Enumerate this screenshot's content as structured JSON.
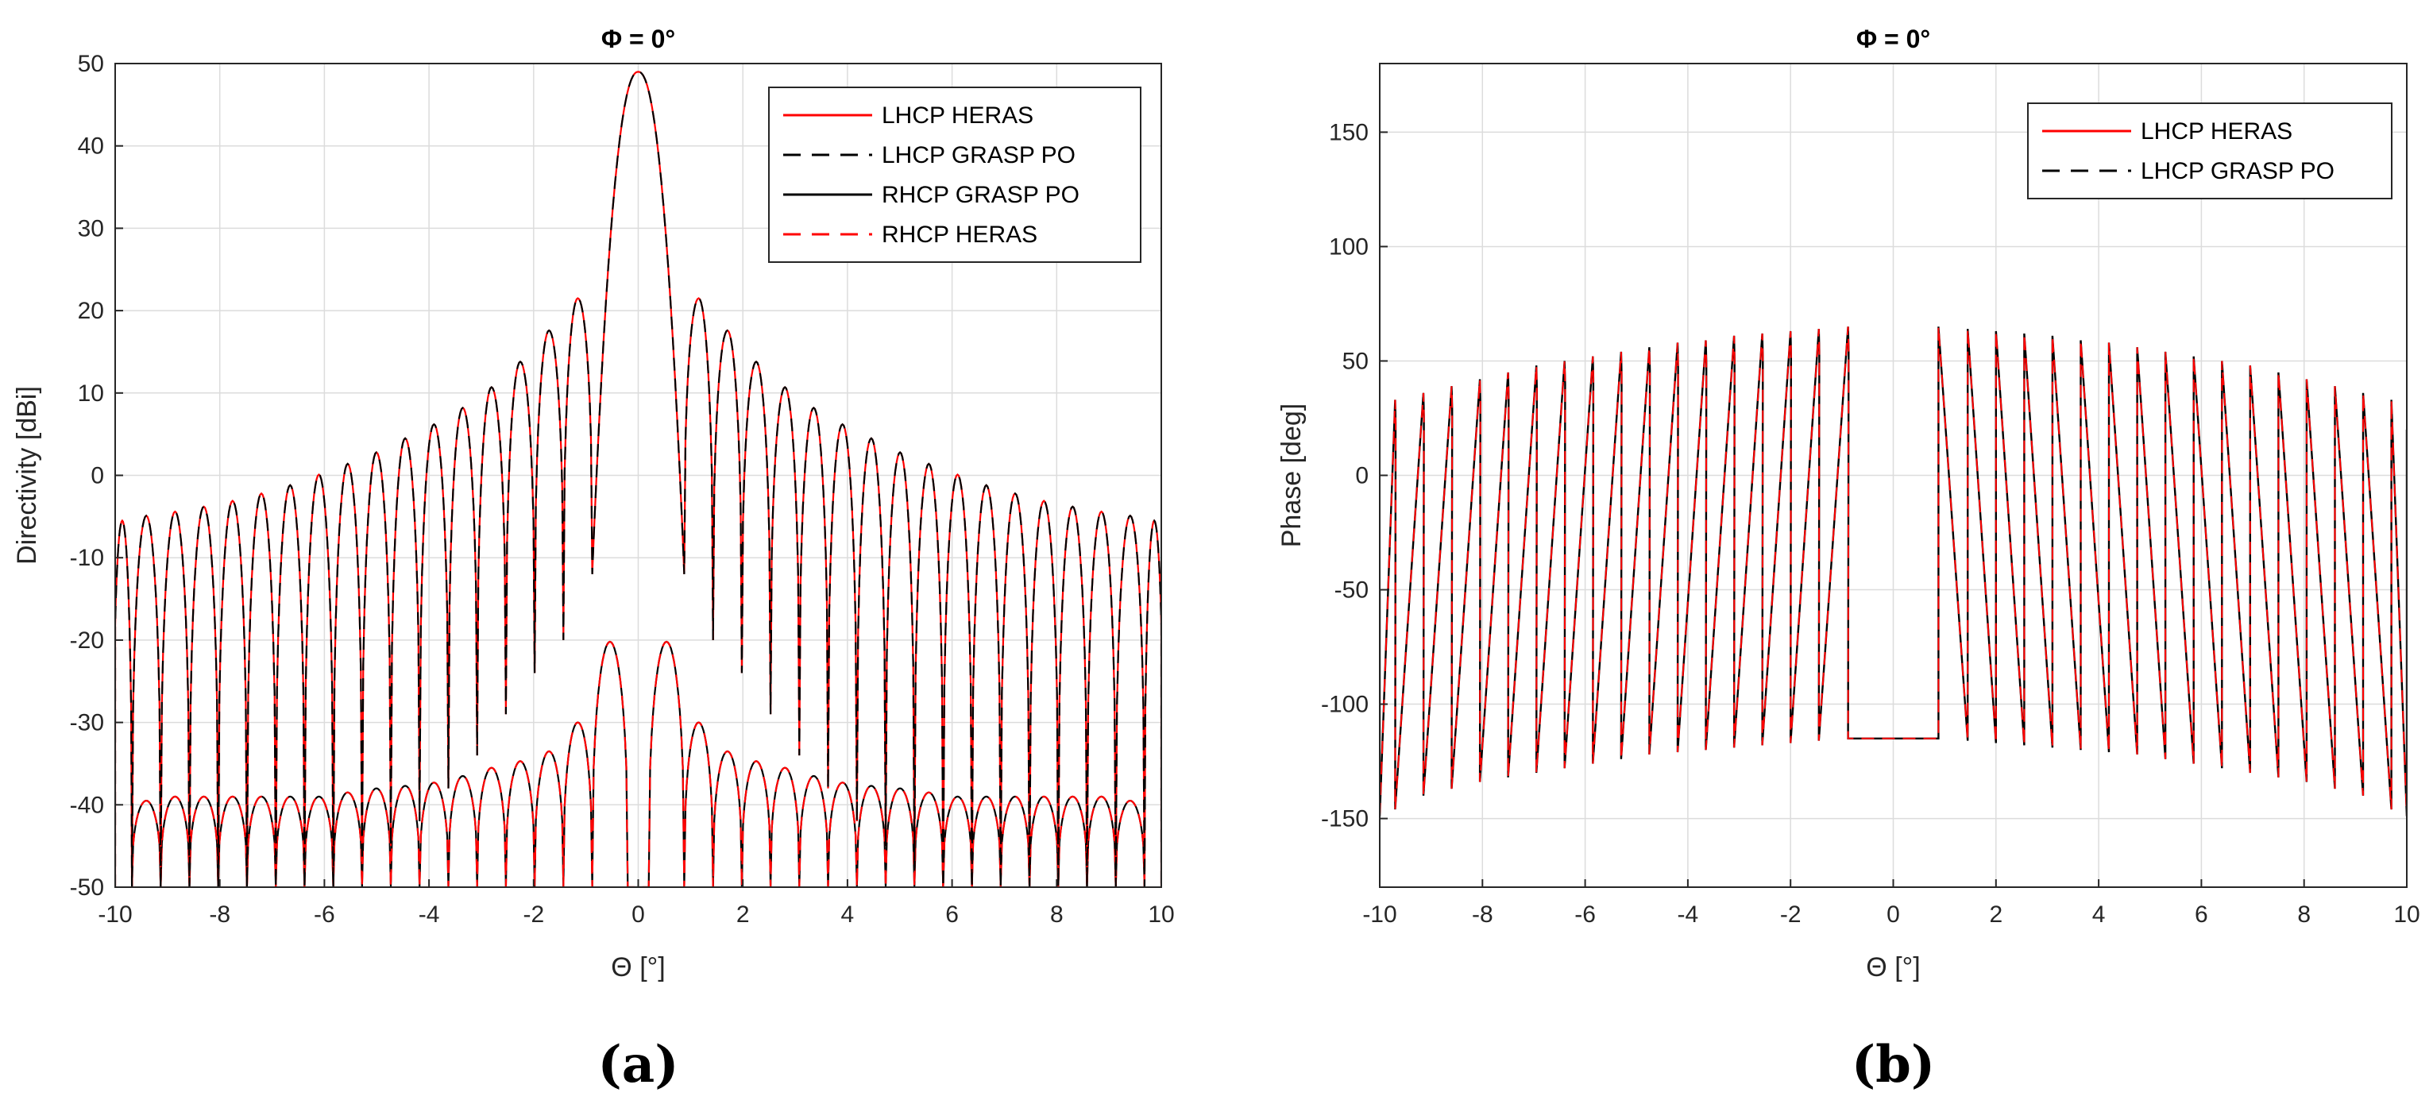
{
  "figure": {
    "panel_a_label": "(a)",
    "panel_b_label": "(b)",
    "colors": {
      "red": "#ff0000",
      "black": "#000000",
      "grid": "#dcdcdc",
      "axis": "#262626"
    }
  },
  "chart_data": [
    {
      "id": "a",
      "type": "line",
      "title": "Φ = 0°",
      "xlabel": "Θ [°]",
      "ylabel": "Directivity [dBi]",
      "xlim": [
        -10,
        10
      ],
      "ylim": [
        -50,
        50
      ],
      "xticks": [
        -10,
        -8,
        -6,
        -4,
        -2,
        0,
        2,
        4,
        6,
        8,
        10
      ],
      "yticks": [
        -50,
        -40,
        -30,
        -20,
        -10,
        0,
        10,
        20,
        30,
        40,
        50
      ],
      "grid": true,
      "legend_position": "top-right",
      "legend": [
        {
          "label": "LHCP HERAS",
          "color": "#ff0000",
          "dash": "solid"
        },
        {
          "label": "LHCP GRASP PO",
          "color": "#000000",
          "dash": "dashed"
        },
        {
          "label": "RHCP GRASP PO",
          "color": "#000000",
          "dash": "solid"
        },
        {
          "label": "RHCP HERAS",
          "color": "#ff0000",
          "dash": "dashed"
        }
      ],
      "main_beam_peak": 49,
      "main_beam_halfwidth": 0.88,
      "lhcp_sidelobe_peaks": [
        [
          0.58,
          21.5
        ],
        [
          1.22,
          17.6
        ],
        [
          1.77,
          13.8
        ],
        [
          2.32,
          10.7
        ],
        [
          2.87,
          8.2
        ],
        [
          3.42,
          6.2
        ],
        [
          3.97,
          4.5
        ],
        [
          4.52,
          2.8
        ],
        [
          5.07,
          1.4
        ],
        [
          5.62,
          0.1
        ],
        [
          6.17,
          -1.2
        ],
        [
          6.72,
          -2.2
        ],
        [
          7.27,
          -3.1
        ],
        [
          7.82,
          -3.8
        ],
        [
          8.37,
          -4.4
        ],
        [
          8.92,
          -4.9
        ],
        [
          9.47,
          -5.5
        ]
      ],
      "lhcp_null_depths": [
        -12,
        -20,
        -24,
        -29,
        -34,
        -38,
        -42,
        -45,
        -48,
        -50,
        -50,
        -50,
        -50,
        -50,
        -50,
        -50,
        -50
      ],
      "rhcp_lobe_peaks": [
        [
          0.58,
          -20.2
        ],
        [
          1.22,
          -30
        ],
        [
          1.77,
          -33.5
        ],
        [
          2.32,
          -34.7
        ],
        [
          2.87,
          -35.5
        ],
        [
          3.42,
          -36.5
        ],
        [
          3.97,
          -37.3
        ],
        [
          4.52,
          -37.7
        ],
        [
          5.07,
          -38
        ],
        [
          5.62,
          -38.5
        ],
        [
          6.17,
          -39
        ],
        [
          6.72,
          -39
        ],
        [
          7.27,
          -39
        ],
        [
          7.82,
          -39
        ],
        [
          8.37,
          -39
        ],
        [
          8.92,
          -39
        ],
        [
          9.47,
          -39.5
        ]
      ]
    },
    {
      "id": "b",
      "type": "line",
      "title": "Φ = 0°",
      "xlabel": "Θ [°]",
      "ylabel": "Phase [deg]",
      "xlim": [
        -10,
        10
      ],
      "ylim": [
        -180,
        180
      ],
      "xticks": [
        -10,
        -8,
        -6,
        -4,
        -2,
        0,
        2,
        4,
        6,
        8,
        10
      ],
      "yticks": [
        -150,
        -100,
        -50,
        0,
        50,
        100,
        150
      ],
      "grid": true,
      "legend_position": "top-right",
      "legend": [
        {
          "label": "LHCP HERAS",
          "color": "#ff0000",
          "dash": "solid"
        },
        {
          "label": "LHCP GRASP PO",
          "color": "#000000",
          "dash": "dashed"
        }
      ],
      "center_plateau": {
        "x": [
          -0.88,
          0.88
        ],
        "y": -115
      },
      "phase_segments": [
        {
          "x": [
            0.88,
            1.45
          ],
          "y": [
            65,
            -116
          ]
        },
        {
          "x": [
            1.45,
            2.0
          ],
          "y": [
            64,
            -117
          ]
        },
        {
          "x": [
            2.0,
            2.55
          ],
          "y": [
            63,
            -118
          ]
        },
        {
          "x": [
            2.55,
            3.1
          ],
          "y": [
            62,
            -119
          ]
        },
        {
          "x": [
            3.1,
            3.65
          ],
          "y": [
            61,
            -120
          ]
        },
        {
          "x": [
            3.65,
            4.2
          ],
          "y": [
            59,
            -121
          ]
        },
        {
          "x": [
            4.2,
            4.75
          ],
          "y": [
            58,
            -122
          ]
        },
        {
          "x": [
            4.75,
            5.3
          ],
          "y": [
            56,
            -124
          ]
        },
        {
          "x": [
            5.3,
            5.85
          ],
          "y": [
            54,
            -126
          ]
        },
        {
          "x": [
            5.85,
            6.4
          ],
          "y": [
            52,
            -128
          ]
        },
        {
          "x": [
            6.4,
            6.95
          ],
          "y": [
            50,
            -130
          ]
        },
        {
          "x": [
            6.95,
            7.5
          ],
          "y": [
            48,
            -132
          ]
        },
        {
          "x": [
            7.5,
            8.05
          ],
          "y": [
            45,
            -134
          ]
        },
        {
          "x": [
            8.05,
            8.6
          ],
          "y": [
            42,
            -137
          ]
        },
        {
          "x": [
            8.6,
            9.15
          ],
          "y": [
            39,
            -140
          ]
        },
        {
          "x": [
            9.15,
            9.7
          ],
          "y": [
            36,
            -146
          ]
        },
        {
          "x": [
            9.7,
            10.0
          ],
          "y": [
            33,
            -149
          ]
        }
      ]
    }
  ]
}
